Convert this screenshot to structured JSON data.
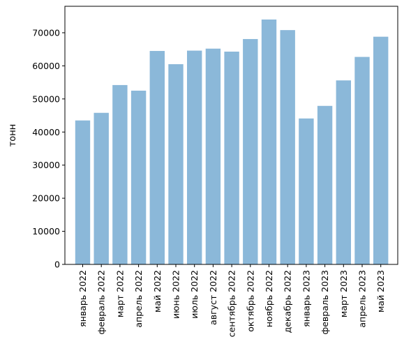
{
  "chart_data": {
    "type": "bar",
    "title": "",
    "xlabel": "",
    "ylabel": "тонн",
    "ylim": [
      0,
      78000
    ],
    "yticks": [
      0,
      10000,
      20000,
      30000,
      40000,
      50000,
      60000,
      70000
    ],
    "grid": false,
    "legend": "none",
    "bar_color": "#8bb8d9",
    "categories": [
      "январь 2022",
      "февраль 2022",
      "март 2022",
      "апрель 2022",
      "май 2022",
      "июнь 2022",
      "июль 2022",
      "август 2022",
      "сентябрь 2022",
      "октябрь 2022",
      "ноябрь 2022",
      "декабрь 2022",
      "январь 2023",
      "февраль 2023",
      "март 2023",
      "апрель 2023",
      "май 2023"
    ],
    "values": [
      43500,
      45800,
      54200,
      52500,
      64500,
      60500,
      64600,
      65200,
      64300,
      68100,
      74000,
      70800,
      44100,
      47900,
      55600,
      62700,
      68800
    ]
  }
}
